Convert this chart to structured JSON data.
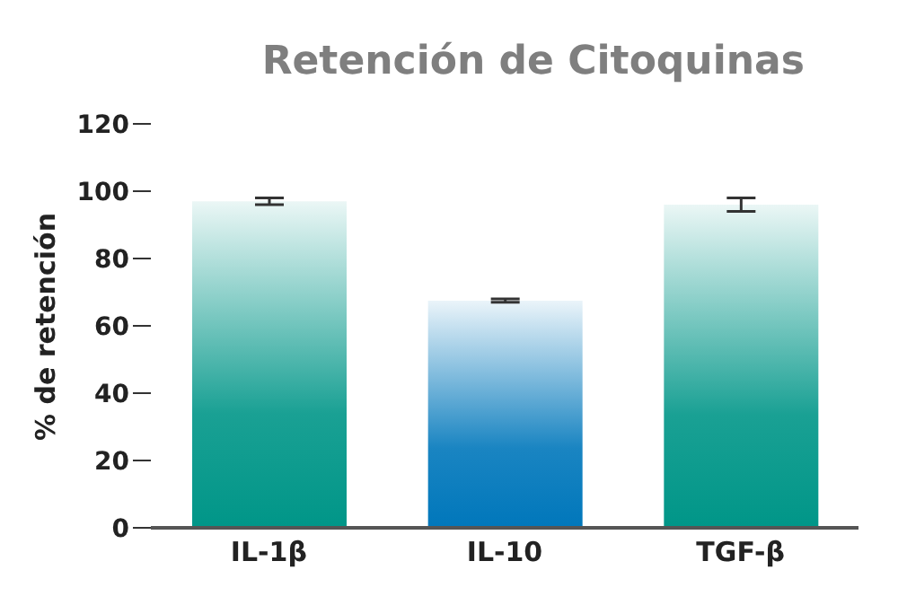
{
  "chart_data": {
    "type": "bar",
    "title": "Retención de Citoquinas",
    "ylabel": "% de retención",
    "categories": [
      "IL-1β",
      "IL-10",
      "TGF-β"
    ],
    "values": [
      97,
      67.5,
      96
    ],
    "errors": [
      1,
      0.5,
      2
    ],
    "colors": [
      "#009688",
      "#0077bb",
      "#009688"
    ],
    "ylim": [
      0,
      120
    ],
    "yticks": [
      0,
      20,
      40,
      60,
      80,
      100,
      120
    ],
    "grid": false,
    "legend": false
  }
}
